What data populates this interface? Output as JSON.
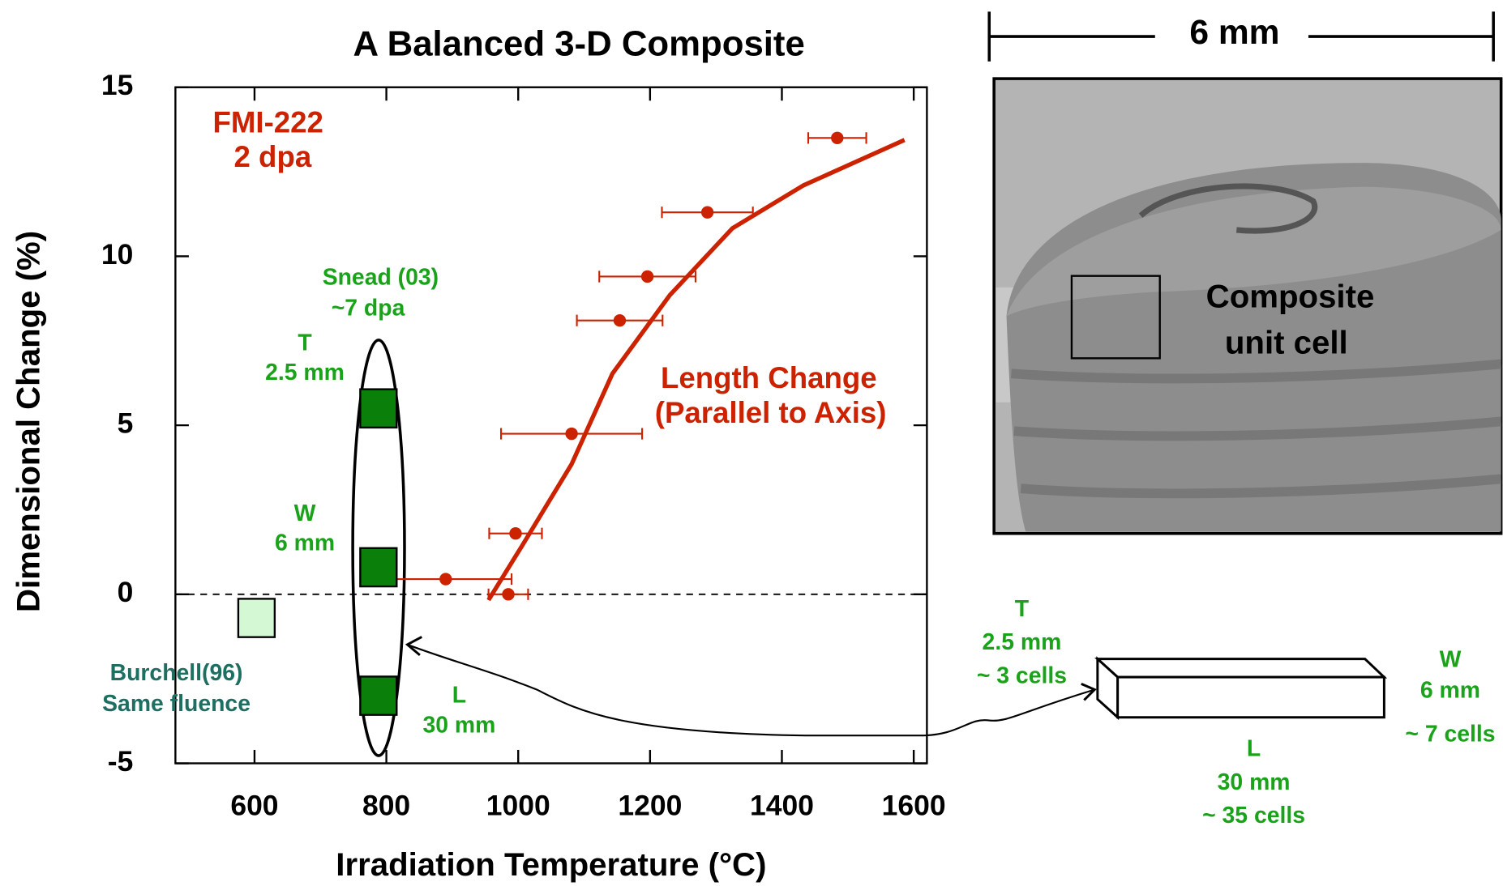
{
  "chart_data": {
    "type": "scatter",
    "title": "A Balanced 3-D Composite",
    "xlabel": "Irradiation Temperature (°C)",
    "ylabel": "Dimensional Change (%)",
    "xlim": [
      480,
      1620
    ],
    "ylim": [
      -5,
      15
    ],
    "xticks": [
      600,
      800,
      1000,
      1200,
      1400,
      1600
    ],
    "yticks": [
      -5,
      0,
      5,
      10,
      15
    ],
    "series": [
      {
        "kind": "errorbar",
        "label": [
          "FMI-222",
          "2 dpa"
        ],
        "color": "#cc2200",
        "x": [
          1484,
          1287,
          1196,
          1154,
          1081,
          996,
          890,
          985
        ],
        "values": [
          13.5,
          11.3,
          9.4,
          8.1,
          4.75,
          1.8,
          0.45,
          0
        ],
        "xerr": [
          44,
          69,
          73,
          65,
          107,
          40,
          100,
          30
        ]
      },
      {
        "kind": "line",
        "label": [
          "Length Change",
          "(Parallel to Axis)"
        ],
        "color": "#cc2200",
        "x": [
          955,
          1006,
          1081,
          1143,
          1230,
          1325,
          1433,
          1586
        ],
        "values": [
          -0.17,
          1.44,
          3.85,
          6.53,
          8.85,
          10.83,
          12.1,
          13.44
        ]
      },
      {
        "kind": "square",
        "label": [
          "Snead (03)",
          "~7 dpa"
        ],
        "color": "#0a7f0a",
        "x": [
          788,
          788,
          788
        ],
        "values": [
          5.5,
          0.8,
          -3.0
        ],
        "point_labels": [
          [
            "T",
            "2.5 mm"
          ],
          [
            "W",
            "6 mm"
          ],
          [
            "L",
            "30 mm"
          ]
        ]
      },
      {
        "kind": "square",
        "label": [
          "Burchell(96)",
          "Same fluence"
        ],
        "color": "#d4f7d4",
        "x": [
          603
        ],
        "values": [
          -0.7
        ]
      }
    ]
  },
  "figure": {
    "scale_label": "6 mm",
    "inset_label": [
      "Composite",
      "unit cell"
    ],
    "box_labels": {
      "T": [
        "T",
        "2.5 mm",
        "~ 3 cells"
      ],
      "W": [
        "W",
        "6 mm",
        "~ 7 cells"
      ],
      "L": [
        "L",
        "30 mm",
        "~ 35 cells"
      ]
    }
  }
}
